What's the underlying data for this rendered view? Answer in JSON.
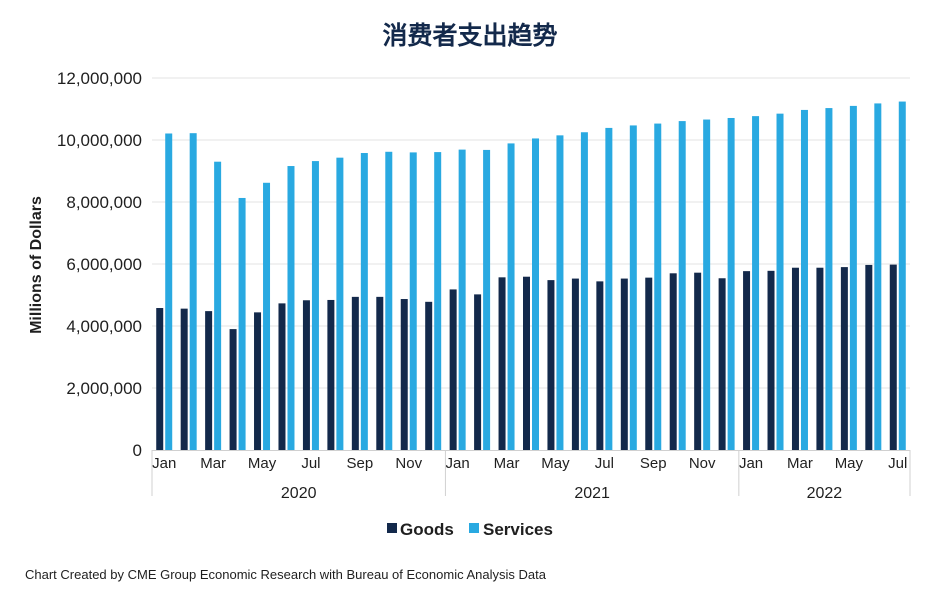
{
  "chart_data": {
    "type": "bar",
    "title": "消费者支出趋势",
    "ylabel": "Millions of Dollars",
    "xlabel": "",
    "ylim": [
      0,
      12000000
    ],
    "y_ticks": [
      {
        "value": 0,
        "label": "0"
      },
      {
        "value": 2000000,
        "label": "2,000,000"
      },
      {
        "value": 4000000,
        "label": "4,000,000"
      },
      {
        "value": 6000000,
        "label": "6,000,000"
      },
      {
        "value": 8000000,
        "label": "8,000,000"
      },
      {
        "value": 10000000,
        "label": "10,000,000"
      },
      {
        "value": 12000000,
        "label": "12,000,000"
      }
    ],
    "grid": true,
    "legend_position": "bottom-center",
    "categories": [
      "Jan 2020",
      "Feb 2020",
      "Mar 2020",
      "Apr 2020",
      "May 2020",
      "Jun 2020",
      "Jul 2020",
      "Aug 2020",
      "Sep 2020",
      "Oct 2020",
      "Nov 2020",
      "Dec 2020",
      "Jan 2021",
      "Feb 2021",
      "Mar 2021",
      "Apr 2021",
      "May 2021",
      "Jun 2021",
      "Jul 2021",
      "Aug 2021",
      "Sep 2021",
      "Oct 2021",
      "Nov 2021",
      "Dec 2021",
      "Jan 2022",
      "Feb 2022",
      "Mar 2022",
      "Apr 2022",
      "May 2022",
      "Jun 2022",
      "Jul 2022"
    ],
    "x_tick_labels": [
      {
        "index": 0,
        "label": "Jan"
      },
      {
        "index": 2,
        "label": "Mar"
      },
      {
        "index": 4,
        "label": "May"
      },
      {
        "index": 6,
        "label": "Jul"
      },
      {
        "index": 8,
        "label": "Sep"
      },
      {
        "index": 10,
        "label": "Nov"
      },
      {
        "index": 12,
        "label": "Jan"
      },
      {
        "index": 14,
        "label": "Mar"
      },
      {
        "index": 16,
        "label": "May"
      },
      {
        "index": 18,
        "label": "Jul"
      },
      {
        "index": 20,
        "label": "Sep"
      },
      {
        "index": 22,
        "label": "Nov"
      },
      {
        "index": 24,
        "label": "Jan"
      },
      {
        "index": 26,
        "label": "Mar"
      },
      {
        "index": 28,
        "label": "May"
      },
      {
        "index": 30,
        "label": "Jul"
      }
    ],
    "year_groups": [
      {
        "label": "2020",
        "start": 0,
        "end": 11
      },
      {
        "label": "2021",
        "start": 12,
        "end": 23
      },
      {
        "label": "2022",
        "start": 24,
        "end": 30
      }
    ],
    "series": [
      {
        "name": "Goods",
        "color": "#13294b",
        "values": [
          4580000,
          4560000,
          4480000,
          3900000,
          4440000,
          4730000,
          4830000,
          4840000,
          4940000,
          4940000,
          4870000,
          4780000,
          5180000,
          5020000,
          5570000,
          5590000,
          5480000,
          5530000,
          5440000,
          5530000,
          5560000,
          5700000,
          5720000,
          5540000,
          5770000,
          5780000,
          5880000,
          5880000,
          5900000,
          5970000,
          5980000
        ]
      },
      {
        "name": "Services",
        "color": "#29a9e1",
        "values": [
          10210000,
          10220000,
          9300000,
          8130000,
          8620000,
          9160000,
          9320000,
          9430000,
          9580000,
          9620000,
          9600000,
          9610000,
          9690000,
          9680000,
          9890000,
          10050000,
          10150000,
          10250000,
          10390000,
          10470000,
          10530000,
          10610000,
          10660000,
          10710000,
          10770000,
          10850000,
          10970000,
          11030000,
          11100000,
          11180000,
          11240000
        ]
      }
    ]
  },
  "footer": {
    "credit": "Chart Created by CME Group Economic Research with Bureau of Economic Analysis Data"
  }
}
